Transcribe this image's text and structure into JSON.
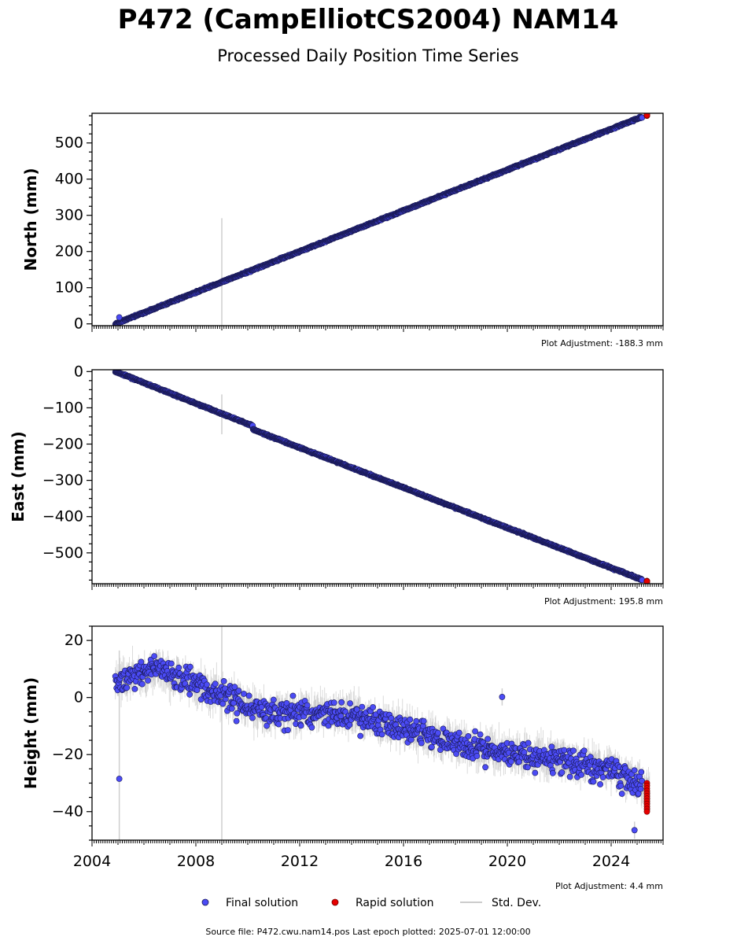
{
  "title": "P472 (CampElliotCS2004) NAM14",
  "subtitle": "Processed Daily Position Time Series",
  "colors": {
    "final": "#4b4bf5",
    "final_edge": "#1a1a55",
    "rapid": "#e60000",
    "std_dev": "#b0b0b0"
  },
  "legend": {
    "final": "Final solution",
    "rapid": "Rapid solution",
    "std": "Std. Dev."
  },
  "footer": "Source file: P472.cwu.nam14.pos  Last epoch plotted: 2025-07-01 12:00:00",
  "chart_data": [
    {
      "type": "scatter",
      "ylabel": "North (mm)",
      "adjustment": "Plot Adjustment: -188.3 mm",
      "xlim": [
        2004.0,
        2026.0
      ],
      "ylim": [
        -5,
        582
      ],
      "yticks": [
        0,
        100,
        200,
        300,
        400,
        500
      ],
      "ytick_labels": [
        "0",
        "100",
        "200",
        "300",
        "400",
        "500"
      ],
      "show_xtick_labels": false,
      "grid": false,
      "trend": {
        "start": [
          2004.9,
          0
        ],
        "end": [
          2025.4,
          578
        ],
        "scatter": 2
      },
      "final_range": [
        2004.9,
        2025.2
      ],
      "rapid_range": [
        2025.2,
        2025.5
      ],
      "std_band": 2.5,
      "outliers": [
        {
          "x": 2005.05,
          "y": 18,
          "err": 4
        },
        {
          "x": 2009.0,
          "y": 120,
          "err": 172
        }
      ]
    },
    {
      "type": "scatter",
      "ylabel": "East (mm)",
      "adjustment": "Plot Adjustment: 195.8 mm",
      "xlim": [
        2004.0,
        2026.0
      ],
      "ylim": [
        -585,
        5
      ],
      "yticks": [
        0,
        -100,
        -200,
        -300,
        -400,
        -500
      ],
      "ytick_labels": [
        "0",
        "−100",
        "−200",
        "−300",
        "−400",
        "−500"
      ],
      "show_xtick_labels": false,
      "grid": false,
      "trend": {
        "start": [
          2004.9,
          0
        ],
        "end": [
          2025.4,
          -580
        ],
        "scatter": 2
      },
      "step": {
        "x": 2010.2,
        "size": -10
      },
      "final_range": [
        2004.9,
        2025.2
      ],
      "rapid_range": [
        2025.2,
        2025.5
      ],
      "std_band": 2.5,
      "outliers": [
        {
          "x": 2009.0,
          "y": -118,
          "err": 55
        }
      ]
    },
    {
      "type": "scatter",
      "ylabel": "Height (mm)",
      "adjustment": "Plot Adjustment: 4.4 mm",
      "xlim": [
        2004.0,
        2026.0
      ],
      "ylim": [
        -50,
        25
      ],
      "yticks": [
        20,
        0,
        -20,
        -40
      ],
      "ytick_labels": [
        "20",
        "0",
        "−20",
        "−40"
      ],
      "xticks": [
        2004,
        2008,
        2012,
        2016,
        2020,
        2024
      ],
      "xtick_labels": [
        "2004",
        "2008",
        "2012",
        "2016",
        "2020",
        "2024"
      ],
      "show_xtick_labels": true,
      "grid": false,
      "anchors": [
        [
          2004.9,
          6
        ],
        [
          2006.5,
          10
        ],
        [
          2008.5,
          3
        ],
        [
          2010.5,
          -5
        ],
        [
          2014.0,
          -6
        ],
        [
          2016.5,
          -12
        ],
        [
          2019.0,
          -18
        ],
        [
          2022.0,
          -22
        ],
        [
          2024.0,
          -25
        ],
        [
          2025.4,
          -32
        ]
      ],
      "scatter": 4.5,
      "final_range": [
        2004.9,
        2025.2
      ],
      "rapid_range": [
        2025.2,
        2025.5
      ],
      "rapid_y": [
        -30,
        -40
      ],
      "std_band": 4,
      "outliers": [
        {
          "x": 2005.05,
          "y": -28.5,
          "err": 45
        },
        {
          "x": 2009.0,
          "y": 3,
          "err": 60
        },
        {
          "x": 2019.8,
          "y": 0.2,
          "err": 3
        },
        {
          "x": 2024.9,
          "y": -46.5,
          "err": 3
        }
      ]
    }
  ]
}
